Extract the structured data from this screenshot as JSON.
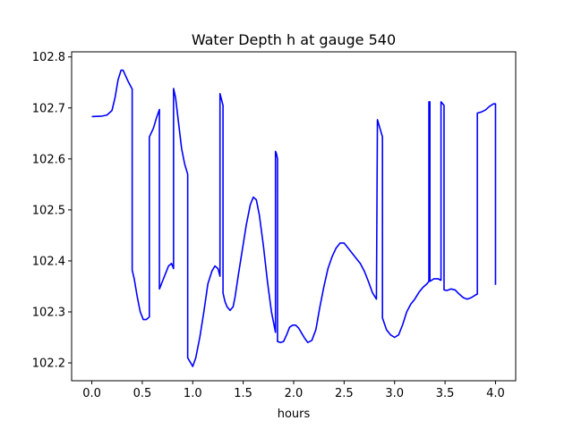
{
  "chart_data": {
    "type": "line",
    "title": "Water Depth h at gauge 540",
    "xlabel": "hours",
    "ylabel": "",
    "xlim": [
      -0.2,
      4.2
    ],
    "ylim": [
      102.165,
      102.81
    ],
    "xticks": [
      0.0,
      0.5,
      1.0,
      1.5,
      2.0,
      2.5,
      3.0,
      3.5,
      4.0
    ],
    "xtick_labels": [
      "0.0",
      "0.5",
      "1.0",
      "1.5",
      "2.0",
      "2.5",
      "3.0",
      "3.5",
      "4.0"
    ],
    "yticks": [
      102.2,
      102.3,
      102.4,
      102.5,
      102.6,
      102.7,
      102.8
    ],
    "ytick_labels": [
      "102.2",
      "102.3",
      "102.4",
      "102.5",
      "102.6",
      "102.7",
      "102.8"
    ],
    "grid": false,
    "series": [
      {
        "color": "#0000ff",
        "x": [
          0.0,
          0.1,
          0.15,
          0.2,
          0.23,
          0.26,
          0.29,
          0.31,
          0.33,
          0.36,
          0.4,
          0.4,
          0.42,
          0.45,
          0.48,
          0.51,
          0.54,
          0.57,
          0.57,
          0.61,
          0.64,
          0.67,
          0.67,
          0.7,
          0.73,
          0.76,
          0.79,
          0.81,
          0.81,
          0.83,
          0.86,
          0.89,
          0.92,
          0.95,
          0.95,
          0.98,
          1.0,
          1.03,
          1.07,
          1.11,
          1.15,
          1.19,
          1.22,
          1.25,
          1.27,
          1.27,
          1.3,
          1.3,
          1.32,
          1.34,
          1.37,
          1.4,
          1.42,
          1.45,
          1.49,
          1.53,
          1.57,
          1.6,
          1.63,
          1.66,
          1.7,
          1.74,
          1.78,
          1.82,
          1.82,
          1.83,
          1.84,
          1.84,
          1.87,
          1.9,
          1.93,
          1.96,
          1.99,
          2.02,
          2.05,
          2.08,
          2.11,
          2.14,
          2.18,
          2.22,
          2.26,
          2.3,
          2.34,
          2.38,
          2.42,
          2.46,
          2.5,
          2.54,
          2.58,
          2.62,
          2.66,
          2.7,
          2.74,
          2.78,
          2.82,
          2.83,
          2.83,
          2.88,
          2.88,
          2.92,
          2.96,
          3.0,
          3.04,
          3.08,
          3.12,
          3.16,
          3.2,
          3.24,
          3.28,
          3.32,
          3.34,
          3.34,
          3.35,
          3.35,
          3.39,
          3.43,
          3.46,
          3.46,
          3.49,
          3.49,
          3.52,
          3.56,
          3.6,
          3.64,
          3.68,
          3.72,
          3.76,
          3.8,
          3.82,
          3.82,
          3.86,
          3.9,
          3.94,
          3.98,
          4.0,
          4.0
        ],
        "y": [
          102.683,
          102.684,
          102.686,
          102.695,
          102.72,
          102.755,
          102.774,
          102.774,
          102.765,
          102.752,
          102.737,
          102.382,
          102.365,
          102.33,
          102.3,
          102.285,
          102.285,
          102.29,
          102.643,
          102.66,
          102.68,
          102.697,
          102.345,
          102.36,
          102.375,
          102.39,
          102.395,
          102.385,
          102.738,
          102.72,
          102.67,
          102.62,
          102.59,
          102.57,
          102.21,
          102.2,
          102.193,
          102.21,
          102.25,
          102.3,
          102.355,
          102.38,
          102.39,
          102.385,
          102.37,
          102.728,
          102.705,
          102.337,
          102.32,
          102.31,
          102.303,
          102.31,
          102.33,
          102.37,
          102.42,
          102.47,
          102.51,
          102.525,
          102.52,
          102.49,
          102.43,
          102.36,
          102.3,
          102.26,
          102.615,
          102.61,
          102.6,
          102.242,
          102.24,
          102.242,
          102.255,
          102.27,
          102.274,
          102.274,
          102.268,
          102.258,
          102.248,
          102.24,
          102.244,
          102.265,
          102.31,
          102.35,
          102.385,
          102.408,
          102.425,
          102.435,
          102.435,
          102.425,
          102.415,
          102.405,
          102.395,
          102.38,
          102.36,
          102.338,
          102.325,
          102.677,
          102.677,
          102.643,
          102.288,
          102.265,
          102.255,
          102.25,
          102.255,
          102.275,
          102.3,
          102.315,
          102.325,
          102.338,
          102.348,
          102.355,
          102.36,
          102.712,
          102.712,
          102.36,
          102.365,
          102.365,
          102.362,
          102.712,
          102.705,
          102.343,
          102.342,
          102.345,
          102.343,
          102.335,
          102.328,
          102.325,
          102.328,
          102.333,
          102.335,
          102.69,
          102.692,
          102.696,
          102.703,
          102.708,
          102.708,
          102.353
        ]
      }
    ]
  }
}
